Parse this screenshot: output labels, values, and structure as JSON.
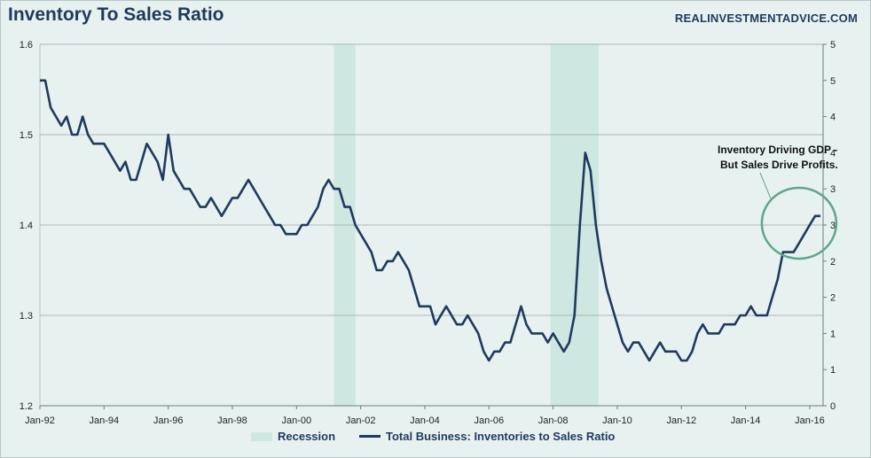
{
  "chart_data": {
    "type": "line",
    "title": "Inventory To Sales Ratio",
    "source": "REALINVESTMENTADVICE.COM",
    "x_range": [
      "1992-01",
      "2016-06"
    ],
    "y_left": {
      "min": 1.2,
      "max": 1.6,
      "ticks": [
        "1.2",
        "1.3",
        "1.4",
        "1.5",
        "1.6"
      ]
    },
    "y_right": {
      "labels": [
        "0",
        "1",
        "1",
        "2",
        "2",
        "3",
        "3",
        "4",
        "4",
        "5",
        "5"
      ]
    },
    "x_ticks": [
      {
        "label": "Jan-92",
        "date": "1992-01"
      },
      {
        "label": "Jan-94",
        "date": "1994-01"
      },
      {
        "label": "Jan-96",
        "date": "1996-01"
      },
      {
        "label": "Jan-98",
        "date": "1998-01"
      },
      {
        "label": "Jan-00",
        "date": "2000-01"
      },
      {
        "label": "Jan-02",
        "date": "2002-01"
      },
      {
        "label": "Jan-04",
        "date": "2004-01"
      },
      {
        "label": "Jan-06",
        "date": "2006-01"
      },
      {
        "label": "Jan-08",
        "date": "2008-01"
      },
      {
        "label": "Jan-10",
        "date": "2010-01"
      },
      {
        "label": "Jan-12",
        "date": "2012-01"
      },
      {
        "label": "Jan-14",
        "date": "2014-01"
      },
      {
        "label": "Jan-16",
        "date": "2016-01"
      }
    ],
    "grid": "horizontal",
    "recessions": [
      {
        "start": "2001-03",
        "end": "2001-11"
      },
      {
        "start": "2007-12",
        "end": "2009-06"
      }
    ],
    "series": [
      {
        "name": "Total Business: Inventories to Sales Ratio",
        "color": "#1f3a5f",
        "points": [
          [
            "1992-01",
            1.56
          ],
          [
            "1992-03",
            1.56
          ],
          [
            "1992-05",
            1.53
          ],
          [
            "1992-07",
            1.52
          ],
          [
            "1992-09",
            1.51
          ],
          [
            "1992-11",
            1.52
          ],
          [
            "1993-01",
            1.5
          ],
          [
            "1993-03",
            1.5
          ],
          [
            "1993-05",
            1.52
          ],
          [
            "1993-07",
            1.5
          ],
          [
            "1993-09",
            1.49
          ],
          [
            "1993-11",
            1.49
          ],
          [
            "1994-01",
            1.49
          ],
          [
            "1994-03",
            1.48
          ],
          [
            "1994-05",
            1.47
          ],
          [
            "1994-07",
            1.46
          ],
          [
            "1994-09",
            1.47
          ],
          [
            "1994-11",
            1.45
          ],
          [
            "1995-01",
            1.45
          ],
          [
            "1995-03",
            1.47
          ],
          [
            "1995-05",
            1.49
          ],
          [
            "1995-07",
            1.48
          ],
          [
            "1995-09",
            1.47
          ],
          [
            "1995-11",
            1.45
          ],
          [
            "1996-01",
            1.5
          ],
          [
            "1996-03",
            1.46
          ],
          [
            "1996-05",
            1.45
          ],
          [
            "1996-07",
            1.44
          ],
          [
            "1996-09",
            1.44
          ],
          [
            "1996-11",
            1.43
          ],
          [
            "1997-01",
            1.42
          ],
          [
            "1997-03",
            1.42
          ],
          [
            "1997-05",
            1.43
          ],
          [
            "1997-07",
            1.42
          ],
          [
            "1997-09",
            1.41
          ],
          [
            "1997-11",
            1.42
          ],
          [
            "1998-01",
            1.43
          ],
          [
            "1998-03",
            1.43
          ],
          [
            "1998-05",
            1.44
          ],
          [
            "1998-07",
            1.45
          ],
          [
            "1998-09",
            1.44
          ],
          [
            "1998-11",
            1.43
          ],
          [
            "1999-01",
            1.42
          ],
          [
            "1999-03",
            1.41
          ],
          [
            "1999-05",
            1.4
          ],
          [
            "1999-07",
            1.4
          ],
          [
            "1999-09",
            1.39
          ],
          [
            "1999-11",
            1.39
          ],
          [
            "2000-01",
            1.39
          ],
          [
            "2000-03",
            1.4
          ],
          [
            "2000-05",
            1.4
          ],
          [
            "2000-07",
            1.41
          ],
          [
            "2000-09",
            1.42
          ],
          [
            "2000-11",
            1.44
          ],
          [
            "2001-01",
            1.45
          ],
          [
            "2001-03",
            1.44
          ],
          [
            "2001-05",
            1.44
          ],
          [
            "2001-07",
            1.42
          ],
          [
            "2001-09",
            1.42
          ],
          [
            "2001-11",
            1.4
          ],
          [
            "2002-01",
            1.39
          ],
          [
            "2002-03",
            1.38
          ],
          [
            "2002-05",
            1.37
          ],
          [
            "2002-07",
            1.35
          ],
          [
            "2002-09",
            1.35
          ],
          [
            "2002-11",
            1.36
          ],
          [
            "2003-01",
            1.36
          ],
          [
            "2003-03",
            1.37
          ],
          [
            "2003-05",
            1.36
          ],
          [
            "2003-07",
            1.35
          ],
          [
            "2003-09",
            1.33
          ],
          [
            "2003-11",
            1.31
          ],
          [
            "2004-01",
            1.31
          ],
          [
            "2004-03",
            1.31
          ],
          [
            "2004-05",
            1.29
          ],
          [
            "2004-07",
            1.3
          ],
          [
            "2004-09",
            1.31
          ],
          [
            "2004-11",
            1.3
          ],
          [
            "2005-01",
            1.29
          ],
          [
            "2005-03",
            1.29
          ],
          [
            "2005-05",
            1.3
          ],
          [
            "2005-07",
            1.29
          ],
          [
            "2005-09",
            1.28
          ],
          [
            "2005-11",
            1.26
          ],
          [
            "2006-01",
            1.25
          ],
          [
            "2006-03",
            1.26
          ],
          [
            "2006-05",
            1.26
          ],
          [
            "2006-07",
            1.27
          ],
          [
            "2006-09",
            1.27
          ],
          [
            "2006-11",
            1.29
          ],
          [
            "2007-01",
            1.31
          ],
          [
            "2007-03",
            1.29
          ],
          [
            "2007-05",
            1.28
          ],
          [
            "2007-07",
            1.28
          ],
          [
            "2007-09",
            1.28
          ],
          [
            "2007-11",
            1.27
          ],
          [
            "2008-01",
            1.28
          ],
          [
            "2008-03",
            1.27
          ],
          [
            "2008-05",
            1.26
          ],
          [
            "2008-07",
            1.27
          ],
          [
            "2008-09",
            1.3
          ],
          [
            "2008-11",
            1.4
          ],
          [
            "2009-01",
            1.48
          ],
          [
            "2009-03",
            1.46
          ],
          [
            "2009-05",
            1.4
          ],
          [
            "2009-07",
            1.36
          ],
          [
            "2009-09",
            1.33
          ],
          [
            "2009-11",
            1.31
          ],
          [
            "2010-01",
            1.29
          ],
          [
            "2010-03",
            1.27
          ],
          [
            "2010-05",
            1.26
          ],
          [
            "2010-07",
            1.27
          ],
          [
            "2010-09",
            1.27
          ],
          [
            "2010-11",
            1.26
          ],
          [
            "2011-01",
            1.25
          ],
          [
            "2011-03",
            1.26
          ],
          [
            "2011-05",
            1.27
          ],
          [
            "2011-07",
            1.26
          ],
          [
            "2011-09",
            1.26
          ],
          [
            "2011-11",
            1.26
          ],
          [
            "2012-01",
            1.25
          ],
          [
            "2012-03",
            1.25
          ],
          [
            "2012-05",
            1.26
          ],
          [
            "2012-07",
            1.28
          ],
          [
            "2012-09",
            1.29
          ],
          [
            "2012-11",
            1.28
          ],
          [
            "2013-01",
            1.28
          ],
          [
            "2013-03",
            1.28
          ],
          [
            "2013-05",
            1.29
          ],
          [
            "2013-07",
            1.29
          ],
          [
            "2013-09",
            1.29
          ],
          [
            "2013-11",
            1.3
          ],
          [
            "2014-01",
            1.3
          ],
          [
            "2014-03",
            1.31
          ],
          [
            "2014-05",
            1.3
          ],
          [
            "2014-07",
            1.3
          ],
          [
            "2014-09",
            1.3
          ],
          [
            "2014-11",
            1.32
          ],
          [
            "2015-01",
            1.34
          ],
          [
            "2015-03",
            1.37
          ],
          [
            "2015-05",
            1.37
          ],
          [
            "2015-07",
            1.37
          ],
          [
            "2015-09",
            1.38
          ],
          [
            "2015-11",
            1.39
          ],
          [
            "2016-01",
            1.4
          ],
          [
            "2016-03",
            1.41
          ],
          [
            "2016-05",
            1.41
          ]
        ]
      }
    ],
    "annotation": {
      "lines": [
        "Inventory Driving GDP -",
        "But Sales Drive Profits."
      ],
      "circle_center": {
        "date": "2015-09",
        "value": 1.402
      }
    },
    "legend": {
      "recession_label": "Recession",
      "series_label": "Total Business: Inventories to Sales Ratio",
      "placement": "bottom"
    },
    "colors": {
      "line": "#1f3a5f",
      "recession": "#cfe7e1",
      "annotation_circle": "#5ba88b",
      "background": "#e7f1ef"
    }
  }
}
